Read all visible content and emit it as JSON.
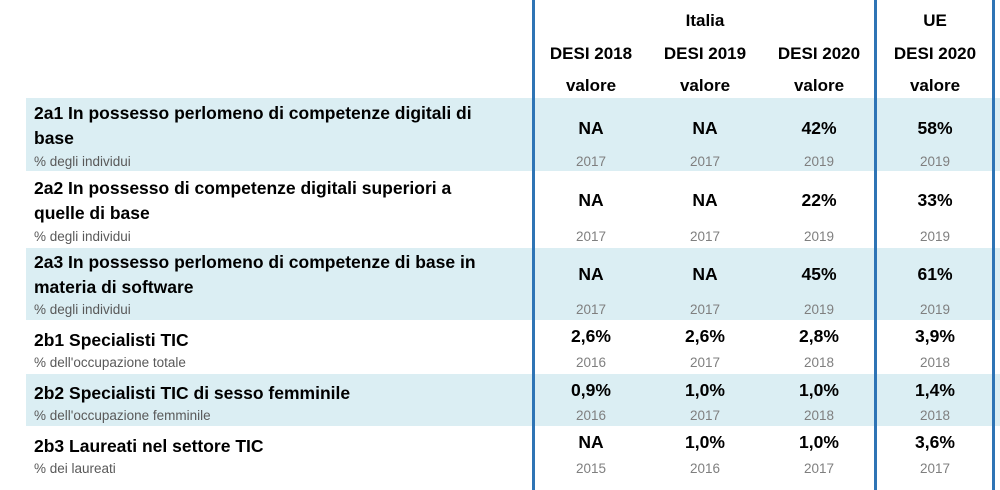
{
  "header": {
    "group_italia": "Italia",
    "group_ue": "UE",
    "columns": [
      {
        "desi": "DESI 2018",
        "unit": "valore"
      },
      {
        "desi": "DESI 2019",
        "unit": "valore"
      },
      {
        "desi": "DESI 2020",
        "unit": "valore"
      },
      {
        "desi": "DESI 2020",
        "unit": "valore"
      }
    ]
  },
  "colors": {
    "shade": "#dbeef3",
    "divider": "#2e74b5",
    "subtext": "#595959",
    "year": "#7f7f7f"
  },
  "rows": [
    {
      "title": "2a1 In possesso perlomeno di competenze digitali di base",
      "subtitle": "% degli individui",
      "values": [
        "NA",
        "NA",
        "42%",
        "58%"
      ],
      "years": [
        "2017",
        "2017",
        "2019",
        "2019"
      ]
    },
    {
      "title": "2a2 In possesso di competenze digitali superiori a quelle di base",
      "subtitle": "% degli individui",
      "values": [
        "NA",
        "NA",
        "22%",
        "33%"
      ],
      "years": [
        "2017",
        "2017",
        "2019",
        "2019"
      ]
    },
    {
      "title": "2a3 In possesso perlomeno di competenze di base in materia di software",
      "subtitle": "% degli individui",
      "values": [
        "NA",
        "NA",
        "45%",
        "61%"
      ],
      "years": [
        "2017",
        "2017",
        "2019",
        "2019"
      ]
    },
    {
      "title": "2b1 Specialisti TIC",
      "subtitle": "% dell'occupazione totale",
      "values": [
        "2,6%",
        "2,6%",
        "2,8%",
        "3,9%"
      ],
      "years": [
        "2016",
        "2017",
        "2018",
        "2018"
      ]
    },
    {
      "title": "2b2 Specialisti TIC di sesso femminile",
      "subtitle": "% dell'occupazione femminile",
      "values": [
        "0,9%",
        "1,0%",
        "1,0%",
        "1,4%"
      ],
      "years": [
        "2016",
        "2017",
        "2018",
        "2018"
      ]
    },
    {
      "title": "2b3 Laureati nel settore TIC",
      "subtitle": "% dei laureati",
      "values": [
        "NA",
        "1,0%",
        "1,0%",
        "3,6%"
      ],
      "years": [
        "2015",
        "2016",
        "2017",
        "2017"
      ]
    }
  ]
}
